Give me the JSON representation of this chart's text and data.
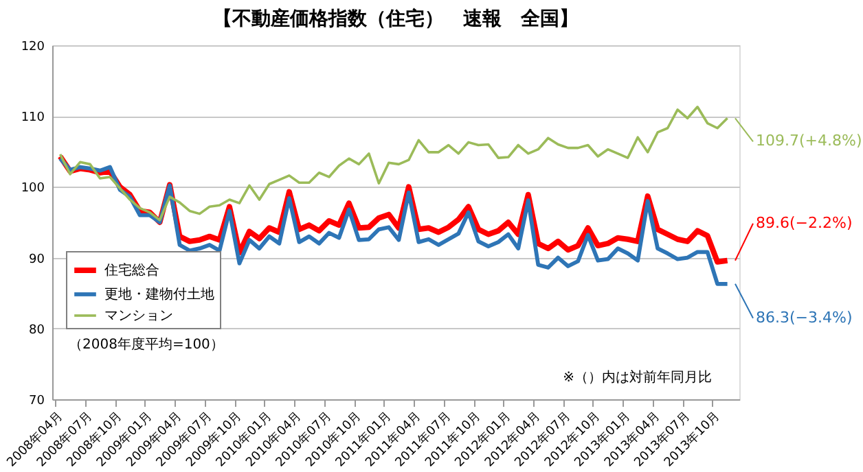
{
  "chart_data": {
    "type": "line",
    "title": "【不動産価格指数（住宅）　速報　全国】",
    "categories": [
      "2008年04月",
      null,
      null,
      "2008年07月",
      null,
      null,
      "2008年10月",
      null,
      null,
      "2009年01月",
      null,
      null,
      "2009年04月",
      null,
      null,
      "2009年07月",
      null,
      null,
      "2009年10月",
      null,
      null,
      "2010年01月",
      null,
      null,
      "2010年04月",
      null,
      null,
      "2010年07月",
      null,
      null,
      "2010年10月",
      null,
      null,
      "2011年01月",
      null,
      null,
      "2011年04月",
      null,
      null,
      "2011年07月",
      null,
      null,
      "2011年10月",
      null,
      null,
      "2012年01月",
      null,
      null,
      "2012年04月",
      null,
      null,
      "2012年07月",
      null,
      null,
      "2012年10月",
      null,
      null,
      "2013年01月",
      null,
      null,
      "2013年04月",
      null,
      null,
      "2013年07月",
      null,
      null,
      "2013年10月",
      null
    ],
    "series": [
      {
        "name": "住宅総合",
        "color": "#ff0000",
        "values": [
          104.3,
          102.2,
          102.6,
          102.4,
          102.0,
          102.2,
          100.0,
          98.9,
          96.6,
          96.4,
          95.0,
          100.3,
          93.0,
          92.3,
          92.5,
          93.0,
          92.5,
          97.2,
          90.7,
          93.7,
          92.7,
          94.2,
          93.6,
          99.3,
          94.0,
          94.6,
          93.8,
          95.2,
          94.6,
          97.7,
          94.2,
          94.3,
          95.6,
          96.1,
          94.2,
          100.0,
          94.0,
          94.2,
          93.6,
          94.3,
          95.4,
          97.2,
          94.0,
          93.3,
          93.8,
          95.0,
          93.3,
          98.9,
          92.0,
          91.3,
          92.3,
          91.1,
          91.7,
          94.2,
          91.7,
          92.0,
          92.8,
          92.6,
          92.3,
          98.7,
          94.0,
          93.3,
          92.6,
          92.3,
          93.8,
          93.1,
          89.4,
          89.6
        ]
      },
      {
        "name": "更地・建物付土地",
        "color": "#2e75b6",
        "values": [
          104.0,
          102.4,
          102.8,
          102.6,
          102.3,
          102.8,
          99.6,
          98.6,
          96.0,
          96.0,
          95.0,
          100.2,
          91.8,
          91.0,
          91.3,
          91.8,
          91.0,
          96.6,
          89.2,
          92.5,
          91.3,
          93.0,
          92.0,
          98.4,
          92.2,
          93.0,
          92.0,
          93.5,
          92.8,
          96.8,
          92.5,
          92.6,
          94.0,
          94.3,
          92.5,
          99.2,
          92.2,
          92.6,
          91.8,
          92.6,
          93.4,
          96.4,
          92.3,
          91.6,
          92.2,
          93.3,
          91.3,
          98.1,
          89.0,
          88.6,
          90.0,
          88.8,
          89.5,
          93.2,
          89.6,
          89.8,
          91.3,
          90.6,
          89.6,
          98.0,
          91.3,
          90.6,
          89.8,
          90.0,
          90.8,
          90.8,
          86.3,
          86.3
        ]
      },
      {
        "name": "マンション",
        "color": "#9bbb59",
        "values": [
          104.6,
          101.8,
          103.5,
          103.2,
          101.2,
          101.4,
          99.8,
          98.2,
          97.0,
          96.4,
          95.3,
          98.6,
          97.8,
          96.6,
          96.2,
          97.2,
          97.4,
          98.2,
          97.7,
          100.2,
          98.2,
          100.4,
          101.0,
          101.6,
          100.6,
          100.6,
          102.0,
          101.4,
          103.0,
          104.0,
          103.2,
          104.7,
          100.5,
          103.4,
          103.2,
          103.8,
          106.6,
          104.9,
          104.9,
          105.9,
          104.7,
          106.3,
          105.9,
          106.0,
          104.1,
          104.2,
          105.9,
          104.7,
          105.3,
          106.9,
          106.0,
          105.5,
          105.5,
          105.9,
          104.3,
          105.3,
          104.7,
          104.1,
          107.0,
          104.9,
          107.7,
          108.3,
          110.9,
          109.7,
          111.3,
          109.0,
          108.3,
          109.7
        ]
      }
    ],
    "ylim": [
      70,
      120
    ],
    "yticks": [
      70,
      80,
      90,
      100,
      110,
      120
    ],
    "grid": "y",
    "legend": "left",
    "annotations": [
      "89.6(−2.2%)",
      "86.3(−3.4%)",
      "109.7(+4.8%)",
      "（2008年度平均=100）",
      "※（）内は対前年同月比"
    ]
  }
}
